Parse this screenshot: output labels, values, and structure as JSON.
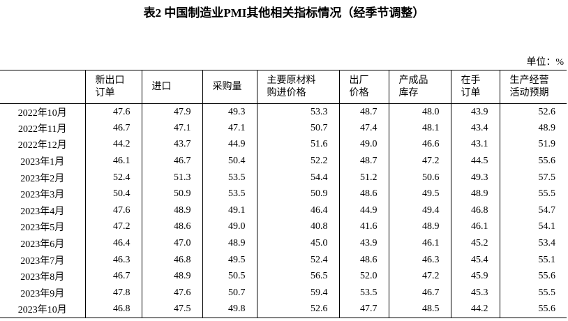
{
  "title": "表2 中国制造业PMI其他相关指标情况（经季节调整）",
  "unit": "单位：%",
  "table": {
    "headers": [
      [
        "新出口",
        "订单"
      ],
      [
        "进口"
      ],
      [
        "采购量"
      ],
      [
        "主要原材料",
        "购进价格"
      ],
      [
        "出厂",
        "价格"
      ],
      [
        "产成品",
        "库存"
      ],
      [
        "在手",
        "订单"
      ],
      [
        "生产经营",
        "活动预期"
      ]
    ],
    "rows": [
      [
        "2022年10月",
        "47.6",
        "47.9",
        "49.3",
        "53.3",
        "48.7",
        "48.0",
        "43.9",
        "52.6"
      ],
      [
        "2022年11月",
        "46.7",
        "47.1",
        "47.1",
        "50.7",
        "47.4",
        "48.1",
        "43.4",
        "48.9"
      ],
      [
        "2022年12月",
        "44.2",
        "43.7",
        "44.9",
        "51.6",
        "49.0",
        "46.6",
        "43.1",
        "51.9"
      ],
      [
        "2023年1月",
        "46.1",
        "46.7",
        "50.4",
        "52.2",
        "48.7",
        "47.2",
        "44.5",
        "55.6"
      ],
      [
        "2023年2月",
        "52.4",
        "51.3",
        "53.5",
        "54.4",
        "51.2",
        "50.6",
        "49.3",
        "57.5"
      ],
      [
        "2023年3月",
        "50.4",
        "50.9",
        "53.5",
        "50.9",
        "48.6",
        "49.5",
        "48.9",
        "55.5"
      ],
      [
        "2023年4月",
        "47.6",
        "48.9",
        "49.1",
        "46.4",
        "44.9",
        "49.4",
        "46.8",
        "54.7"
      ],
      [
        "2023年5月",
        "47.2",
        "48.6",
        "49.0",
        "40.8",
        "41.6",
        "48.9",
        "46.1",
        "54.1"
      ],
      [
        "2023年6月",
        "46.4",
        "47.0",
        "48.9",
        "45.0",
        "43.9",
        "46.1",
        "45.2",
        "53.4"
      ],
      [
        "2023年7月",
        "46.3",
        "46.8",
        "49.5",
        "52.4",
        "48.6",
        "46.3",
        "45.4",
        "55.1"
      ],
      [
        "2023年8月",
        "46.7",
        "48.9",
        "50.5",
        "56.5",
        "52.0",
        "47.2",
        "45.9",
        "55.6"
      ],
      [
        "2023年9月",
        "47.8",
        "47.6",
        "50.7",
        "59.4",
        "53.5",
        "46.7",
        "45.3",
        "55.5"
      ],
      [
        "2023年10月",
        "46.8",
        "47.5",
        "49.8",
        "52.6",
        "47.7",
        "48.5",
        "44.2",
        "55.6"
      ]
    ]
  }
}
